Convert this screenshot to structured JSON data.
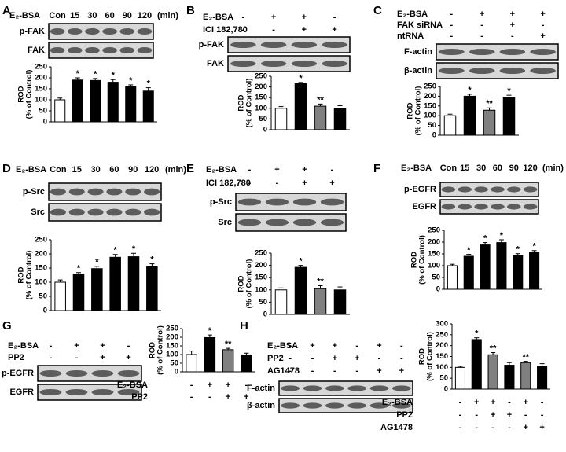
{
  "chart_data": [
    {
      "type": "bar",
      "label": "A",
      "conditions": [
        {
          "name": "E₂-BSA",
          "marks": [
            "Con",
            "15",
            "30",
            "60",
            "90",
            "120"
          ]
        }
      ],
      "unit": "(min)",
      "blots": [
        "p-FAK",
        "FAK"
      ],
      "ylabel": [
        "ROD",
        "(% of Control)"
      ],
      "values": [
        100,
        190,
        188,
        180,
        160,
        140
      ],
      "errors": [
        8,
        10,
        9,
        12,
        8,
        15
      ],
      "colors": [
        "#ffffff",
        "#000000",
        "#000000",
        "#000000",
        "#000000",
        "#000000"
      ],
      "annotations": [
        null,
        "*",
        "*",
        "*",
        "*",
        "*"
      ],
      "ylim": [
        0,
        250
      ],
      "yticks": [
        0,
        50,
        100,
        150,
        200,
        250
      ]
    },
    {
      "type": "bar",
      "label": "B",
      "conditions": [
        {
          "name": "E₂-BSA",
          "marks": [
            "-",
            "+",
            "+",
            "-"
          ]
        },
        {
          "name": "ICI 182,780",
          "marks": [
            "-",
            "-",
            "+",
            "+"
          ]
        }
      ],
      "blots": [
        "p-FAK",
        "FAK"
      ],
      "ylabel": [
        "ROD",
        "(% of Control)"
      ],
      "values": [
        100,
        215,
        110,
        100
      ],
      "errors": [
        8,
        6,
        10,
        12
      ],
      "colors": [
        "#ffffff",
        "#000000",
        "#808080",
        "#000000"
      ],
      "annotations": [
        null,
        "*",
        "**",
        null
      ],
      "ylim": [
        0,
        250
      ],
      "yticks": [
        0,
        50,
        100,
        150,
        200,
        250
      ]
    },
    {
      "type": "bar",
      "label": "C",
      "conditions": [
        {
          "name": "E₂-BSA",
          "marks": [
            "-",
            "+",
            "+",
            "+"
          ]
        },
        {
          "name": "FAK siRNA",
          "marks": [
            "-",
            "-",
            "+",
            "-"
          ]
        },
        {
          "name": "ntRNA",
          "marks": [
            "-",
            "-",
            "-",
            "+"
          ]
        }
      ],
      "blots": [
        "F-actin",
        "β-actin"
      ],
      "ylabel": [
        "ROD",
        "(% of Control)"
      ],
      "values": [
        100,
        200,
        128,
        195
      ],
      "errors": [
        8,
        10,
        12,
        10
      ],
      "colors": [
        "#ffffff",
        "#000000",
        "#808080",
        "#000000"
      ],
      "annotations": [
        null,
        "*",
        "**",
        "*"
      ],
      "ylim": [
        0,
        250
      ],
      "yticks": [
        0,
        50,
        100,
        150,
        200,
        250
      ]
    },
    {
      "type": "bar",
      "label": "D",
      "conditions": [
        {
          "name": "E₂-BSA",
          "marks": [
            "Con",
            "15",
            "30",
            "60",
            "90",
            "120"
          ]
        }
      ],
      "unit": "(min)",
      "blots": [
        "p-Src",
        "Src"
      ],
      "ylabel": [
        "ROD",
        "(% of Control)"
      ],
      "values": [
        100,
        128,
        148,
        188,
        190,
        155
      ],
      "errors": [
        8,
        6,
        8,
        10,
        12,
        10
      ],
      "colors": [
        "#ffffff",
        "#000000",
        "#000000",
        "#000000",
        "#000000",
        "#000000"
      ],
      "annotations": [
        null,
        "*",
        "*",
        "*",
        "*",
        "*"
      ],
      "ylim": [
        0,
        250
      ],
      "yticks": [
        0,
        50,
        100,
        150,
        200,
        250
      ]
    },
    {
      "type": "bar",
      "label": "E",
      "conditions": [
        {
          "name": "E₂-BSA",
          "marks": [
            "-",
            "+",
            "+",
            "-"
          ]
        },
        {
          "name": "ICI 182,780",
          "marks": [
            "-",
            "-",
            "+",
            "+"
          ]
        }
      ],
      "blots": [
        "p-Src",
        "Src"
      ],
      "ylabel": [
        "ROD",
        "(% of Control)"
      ],
      "values": [
        100,
        192,
        105,
        100
      ],
      "errors": [
        8,
        8,
        12,
        12
      ],
      "colors": [
        "#ffffff",
        "#000000",
        "#808080",
        "#000000"
      ],
      "annotations": [
        null,
        "*",
        "**",
        null
      ],
      "ylim": [
        0,
        250
      ],
      "yticks": [
        0,
        50,
        100,
        150,
        200,
        250
      ]
    },
    {
      "type": "bar",
      "label": "F",
      "conditions": [
        {
          "name": "E₂-BSA",
          "marks": [
            "Con",
            "15",
            "30",
            "60",
            "90",
            "120"
          ]
        }
      ],
      "unit": "(min)",
      "blots": [
        "p-EGFR",
        "EGFR"
      ],
      "ylabel": [
        "ROD",
        "(% of Control)"
      ],
      "values": [
        100,
        140,
        188,
        198,
        143,
        158
      ],
      "errors": [
        6,
        8,
        10,
        12,
        8,
        6
      ],
      "colors": [
        "#ffffff",
        "#000000",
        "#000000",
        "#000000",
        "#000000",
        "#000000"
      ],
      "annotations": [
        null,
        "*",
        "*",
        "*",
        "*",
        "*"
      ],
      "ylim": [
        0,
        250
      ],
      "yticks": [
        0,
        50,
        100,
        150,
        200,
        250
      ]
    },
    {
      "type": "bar",
      "label": "G",
      "conditions": [
        {
          "name": "E₂-BSA",
          "marks": [
            "-",
            "+",
            "+",
            "-"
          ]
        },
        {
          "name": "PP2",
          "marks": [
            "-",
            "-",
            "+",
            "+"
          ]
        }
      ],
      "blots": [
        "p-EGFR",
        "EGFR"
      ],
      "chart_conditions": [
        {
          "name": "E₂-BSA",
          "marks": [
            "-",
            "+",
            "+",
            "-"
          ]
        },
        {
          "name": "PP2",
          "marks": [
            "-",
            "-",
            "+",
            "+"
          ]
        }
      ],
      "ylabel": [
        "ROD",
        "(% of Control)"
      ],
      "values": [
        100,
        198,
        128,
        98
      ],
      "errors": [
        20,
        15,
        8,
        10
      ],
      "colors": [
        "#ffffff",
        "#000000",
        "#808080",
        "#000000"
      ],
      "annotations": [
        null,
        "*",
        "**",
        null
      ],
      "ylim": [
        0,
        250
      ],
      "yticks": [
        0,
        50,
        100,
        150,
        200,
        250
      ]
    },
    {
      "type": "bar",
      "label": "H",
      "conditions": [
        {
          "name": "E₂-BSA",
          "marks": [
            "-",
            "+",
            "+",
            "-",
            "+",
            "-"
          ]
        },
        {
          "name": "PP2",
          "marks": [
            "-",
            "-",
            "+",
            "+",
            "-",
            "-"
          ]
        },
        {
          "name": "AG1478",
          "marks": [
            "-",
            "-",
            "-",
            "-",
            "+",
            "+"
          ]
        }
      ],
      "blots": [
        "F-actin",
        "β-actin"
      ],
      "chart_conditions": [
        {
          "name": "E₂-BSA",
          "marks": [
            "-",
            "+",
            "+",
            "-",
            "+",
            "-"
          ]
        },
        {
          "name": "PP2",
          "marks": [
            "-",
            "-",
            "+",
            "+",
            "-",
            "-"
          ]
        },
        {
          "name": "AG1478",
          "marks": [
            "-",
            "-",
            "-",
            "-",
            "+",
            "+"
          ]
        }
      ],
      "ylabel": [
        "ROD",
        "(% of Control)"
      ],
      "values": [
        100,
        228,
        158,
        110,
        122,
        105
      ],
      "errors": [
        5,
        8,
        10,
        12,
        6,
        12
      ],
      "colors": [
        "#ffffff",
        "#000000",
        "#808080",
        "#000000",
        "#808080",
        "#000000"
      ],
      "annotations": [
        null,
        "*",
        "**",
        null,
        "**",
        null
      ],
      "ylim": [
        0,
        300
      ],
      "yticks": [
        0,
        50,
        100,
        150,
        200,
        250,
        300
      ]
    }
  ]
}
